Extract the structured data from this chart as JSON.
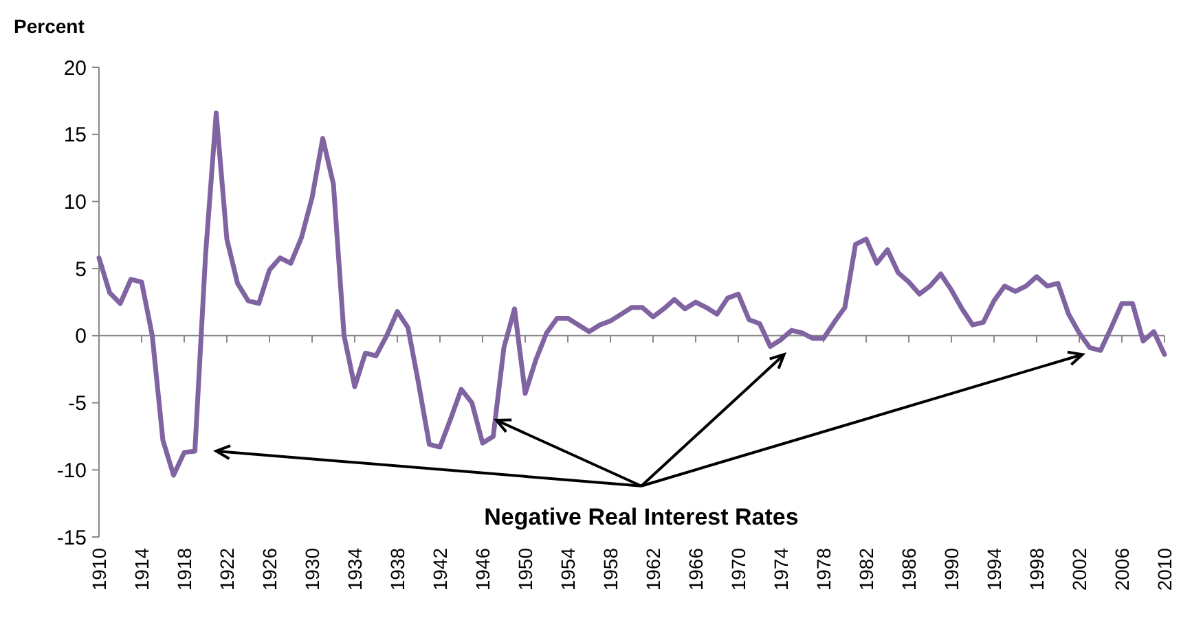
{
  "chart_data": {
    "type": "line",
    "ylabel": "Percent",
    "annotations": [
      {
        "text": "Negative Real Interest Rates",
        "x": 1947,
        "y": -7.5
      }
    ],
    "x": [
      1910,
      1911,
      1912,
      1913,
      1914,
      1915,
      1916,
      1917,
      1918,
      1919,
      1920,
      1921,
      1922,
      1923,
      1924,
      1925,
      1926,
      1927,
      1928,
      1929,
      1930,
      1931,
      1932,
      1933,
      1934,
      1935,
      1936,
      1937,
      1938,
      1939,
      1940,
      1941,
      1942,
      1943,
      1944,
      1945,
      1946,
      1947,
      1948,
      1949,
      1950,
      1951,
      1952,
      1953,
      1954,
      1955,
      1956,
      1957,
      1958,
      1959,
      1960,
      1961,
      1962,
      1963,
      1964,
      1965,
      1966,
      1967,
      1968,
      1969,
      1970,
      1971,
      1972,
      1973,
      1974,
      1975,
      1976,
      1977,
      1978,
      1979,
      1980,
      1981,
      1982,
      1983,
      1984,
      1985,
      1986,
      1987,
      1988,
      1989,
      1990,
      1991,
      1992,
      1993,
      1994,
      1995,
      1996,
      1997,
      1998,
      1999,
      2000,
      2001,
      2002,
      2003,
      2004,
      2005,
      2006,
      2007,
      2008,
      2009,
      2010
    ],
    "series": [
      {
        "color": "#8064a2",
        "values": [
          5.8,
          3.2,
          2.4,
          4.2,
          4.0,
          0,
          -7.8,
          -10.4,
          -8.7,
          -8.6,
          6,
          16.6,
          7.2,
          3.9,
          2.6,
          2.4,
          4.9,
          5.8,
          5.4,
          7.3,
          10.3,
          14.7,
          11.3,
          0,
          -3.8,
          -1.3,
          -1.5,
          0,
          1.8,
          0.6,
          -3.6,
          -8.1,
          -8.3,
          -6.2,
          -4.0,
          -5.0,
          -8.0,
          -7.5,
          -0.9,
          2.0,
          -4.3,
          -1.8,
          0.2,
          1.3,
          1.3,
          0.8,
          0.3,
          0.8,
          1.1,
          1.6,
          2.1,
          2.1,
          1.4,
          2.0,
          2.7,
          2.0,
          2.5,
          2.1,
          1.6,
          2.8,
          3.1,
          1.2,
          0.9,
          -0.8,
          -0.3,
          0.4,
          0.2,
          -0.2,
          -0.2,
          1.0,
          2.1,
          6.8,
          7.2,
          5.4,
          6.4,
          4.7,
          4.0,
          3.1,
          3.7,
          4.6,
          3.4,
          2.0,
          0.8,
          1.0,
          2.6,
          3.7,
          3.3,
          3.7,
          4.4,
          3.7,
          3.9,
          1.6,
          0.2,
          -0.9,
          -1.1,
          0.6,
          2.4,
          2.4,
          -0.4,
          0.3,
          -1.4
        ]
      }
    ],
    "xlim": [
      1910,
      2010
    ],
    "xticks": [
      1910,
      1914,
      1918,
      1922,
      1926,
      1930,
      1934,
      1938,
      1942,
      1946,
      1950,
      1954,
      1958,
      1962,
      1966,
      1970,
      1974,
      1978,
      1982,
      1986,
      1990,
      1994,
      1998,
      2002,
      2006,
      2010
    ],
    "ylim": [
      -15,
      20
    ],
    "yticks": [
      -15,
      -10,
      -5,
      0,
      5,
      10,
      15,
      20
    ],
    "marker": "none",
    "line_style": "solid"
  }
}
